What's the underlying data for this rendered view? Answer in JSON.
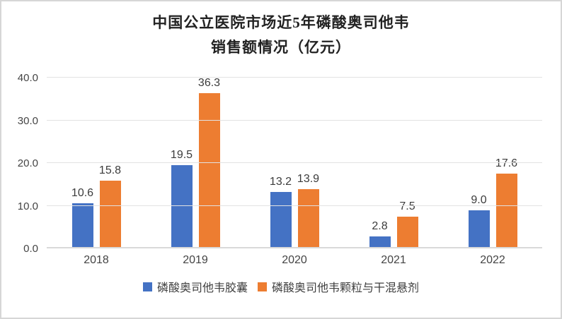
{
  "title": {
    "line1": "中国公立医院市场近5年磷酸奥司他韦",
    "line2": "销售额情况（亿元）"
  },
  "chart_data": {
    "type": "bar",
    "title": "中国公立医院市场近5年磷酸奥司他韦销售额情况（亿元）",
    "categories": [
      "2018",
      "2019",
      "2020",
      "2021",
      "2022"
    ],
    "series": [
      {
        "name": "磷酸奥司他韦胶囊",
        "color": "#4472C4",
        "values": [
          10.6,
          19.5,
          13.2,
          2.8,
          9.0
        ]
      },
      {
        "name": "磷酸奥司他韦颗粒与干混悬剂",
        "color": "#ED7D31",
        "values": [
          15.8,
          36.3,
          13.9,
          7.5,
          17.6
        ]
      }
    ],
    "xlabel": "",
    "ylabel": "",
    "ylim": [
      0,
      40
    ],
    "yticks": [
      0.0,
      10.0,
      20.0,
      30.0,
      40.0
    ],
    "ytick_labels": [
      "0.0",
      "10.0",
      "20.0",
      "30.0",
      "40.0"
    ],
    "grid": "horizontal-only",
    "legend_position": "bottom",
    "data_labels": true,
    "value_decimals": 1
  },
  "colors": {
    "series_blue": "#4472C4",
    "series_orange": "#ED7D31",
    "gridline": "#e2e2e2",
    "axis_baseline": "#d9d9d9",
    "text_dark": "#3b3b3b",
    "frame_border": "#d6d6d6"
  }
}
